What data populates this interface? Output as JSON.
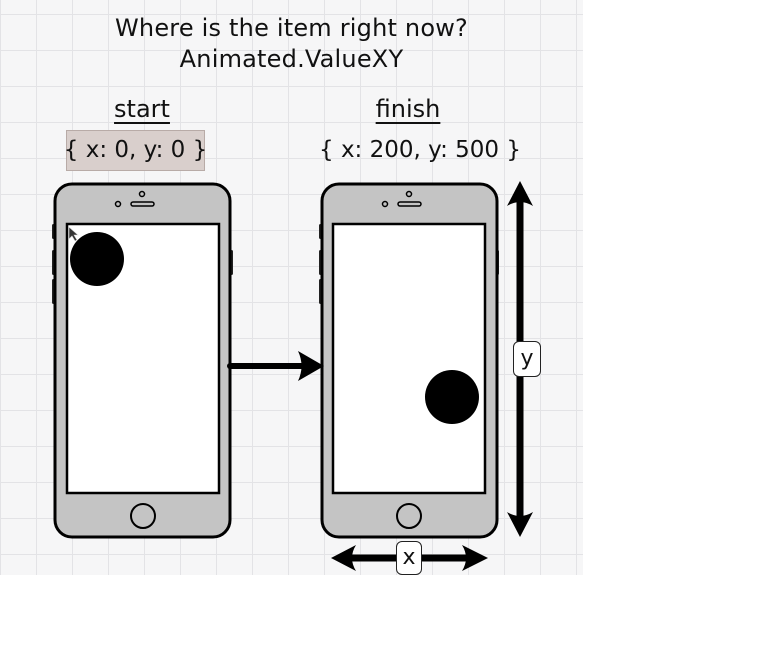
{
  "title_line1": "Where is the item right now?",
  "title_line2": "Animated.ValueXY",
  "start": {
    "label": "start",
    "coord": "{ x: 0, y: 0 }"
  },
  "finish": {
    "label": "finish",
    "coord": "{ x: 200, y: 500 }"
  },
  "axis": {
    "y_label": "y",
    "x_label": "x"
  },
  "colors": {
    "phone_body": "#c4c4c4",
    "screen": "#ffffff",
    "ink": "#000000",
    "highlight": "#d9cfcc"
  }
}
